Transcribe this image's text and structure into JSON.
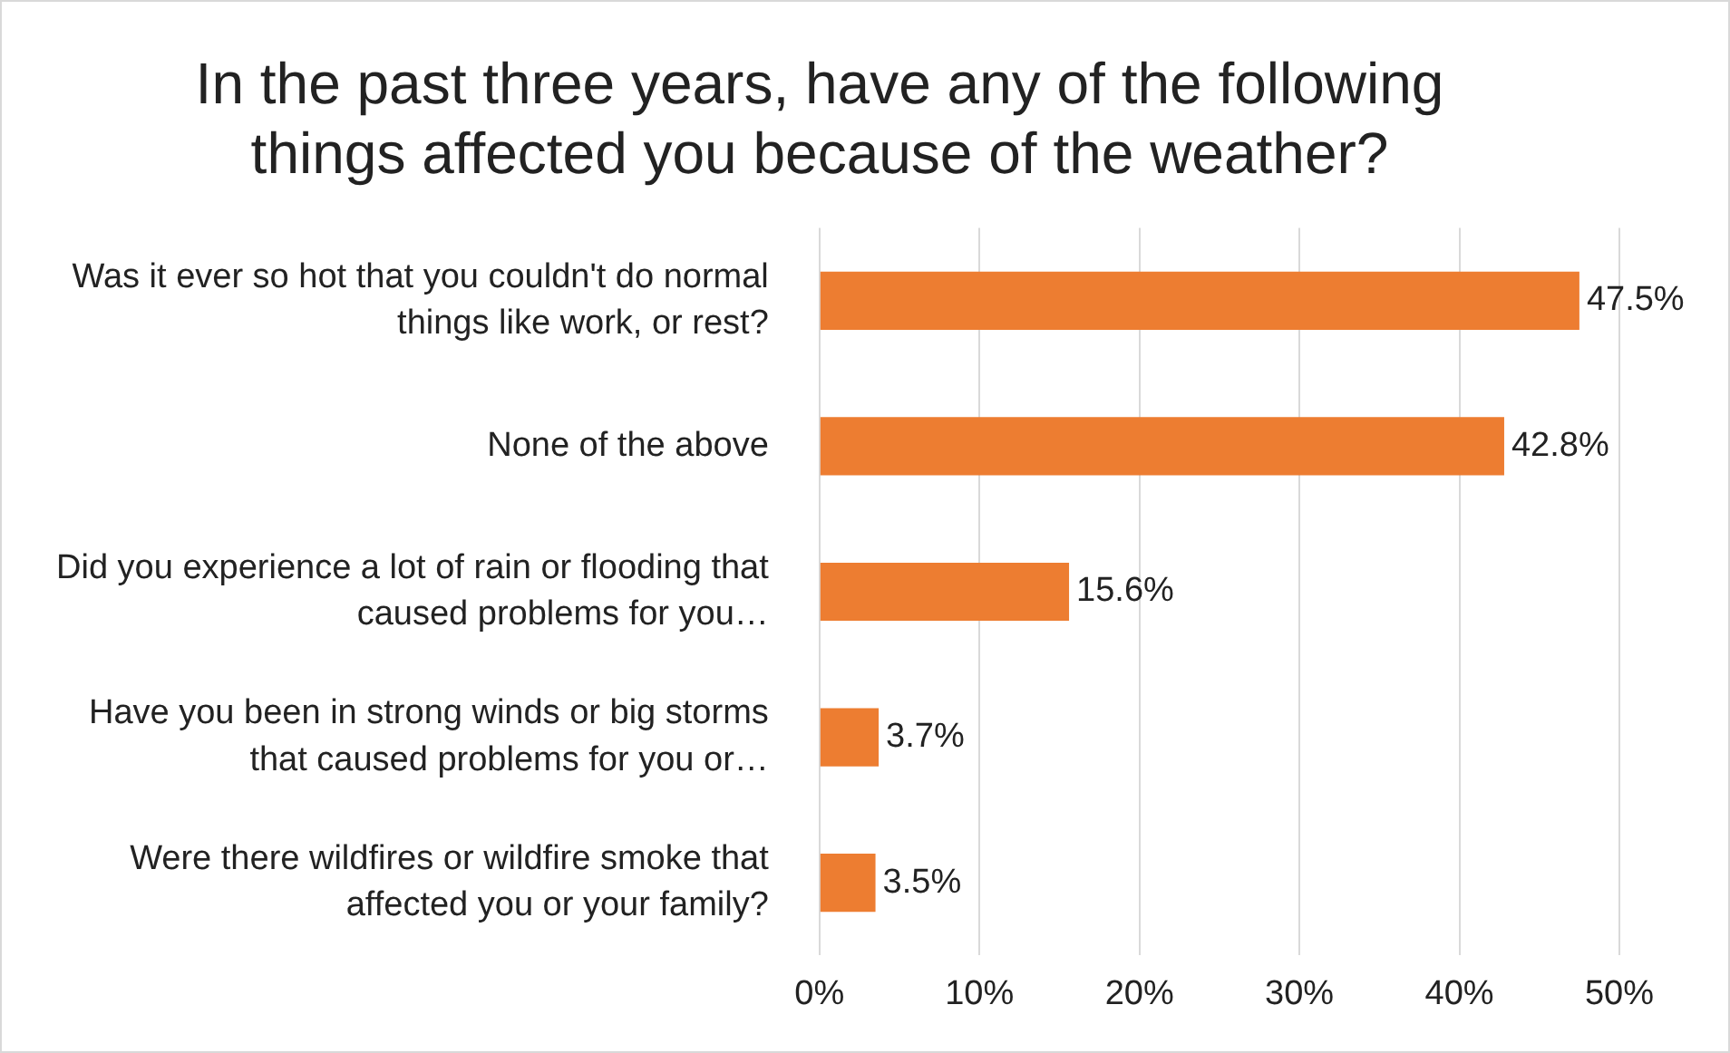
{
  "chart_data": {
    "type": "bar",
    "orientation": "horizontal",
    "title": "In the past three years, have any of the following things affected you because of the weather?",
    "categories": [
      "Was it ever so hot that you couldn't do normal things like work, or rest?",
      "None of the above",
      "Did you experience a lot of rain or flooding that caused problems for you…",
      "Have you been in strong winds or big storms that caused problems for you or…",
      "Were there wildfires or wildfire smoke that affected you or your family?"
    ],
    "values": [
      47.5,
      42.8,
      15.6,
      3.7,
      3.5
    ],
    "value_labels": [
      "47.5%",
      "42.8%",
      "15.6%",
      "3.7%",
      "3.5%"
    ],
    "color": "#ed7d31",
    "xlim": [
      0,
      50
    ],
    "xticks": [
      {
        "value": 0,
        "label": "0%"
      },
      {
        "value": 10,
        "label": "10%"
      },
      {
        "value": 20,
        "label": "20%"
      },
      {
        "value": 30,
        "label": "30%"
      },
      {
        "value": 40,
        "label": "40%"
      },
      {
        "value": 50,
        "label": "50%"
      }
    ],
    "grid": "x",
    "legend": false
  }
}
